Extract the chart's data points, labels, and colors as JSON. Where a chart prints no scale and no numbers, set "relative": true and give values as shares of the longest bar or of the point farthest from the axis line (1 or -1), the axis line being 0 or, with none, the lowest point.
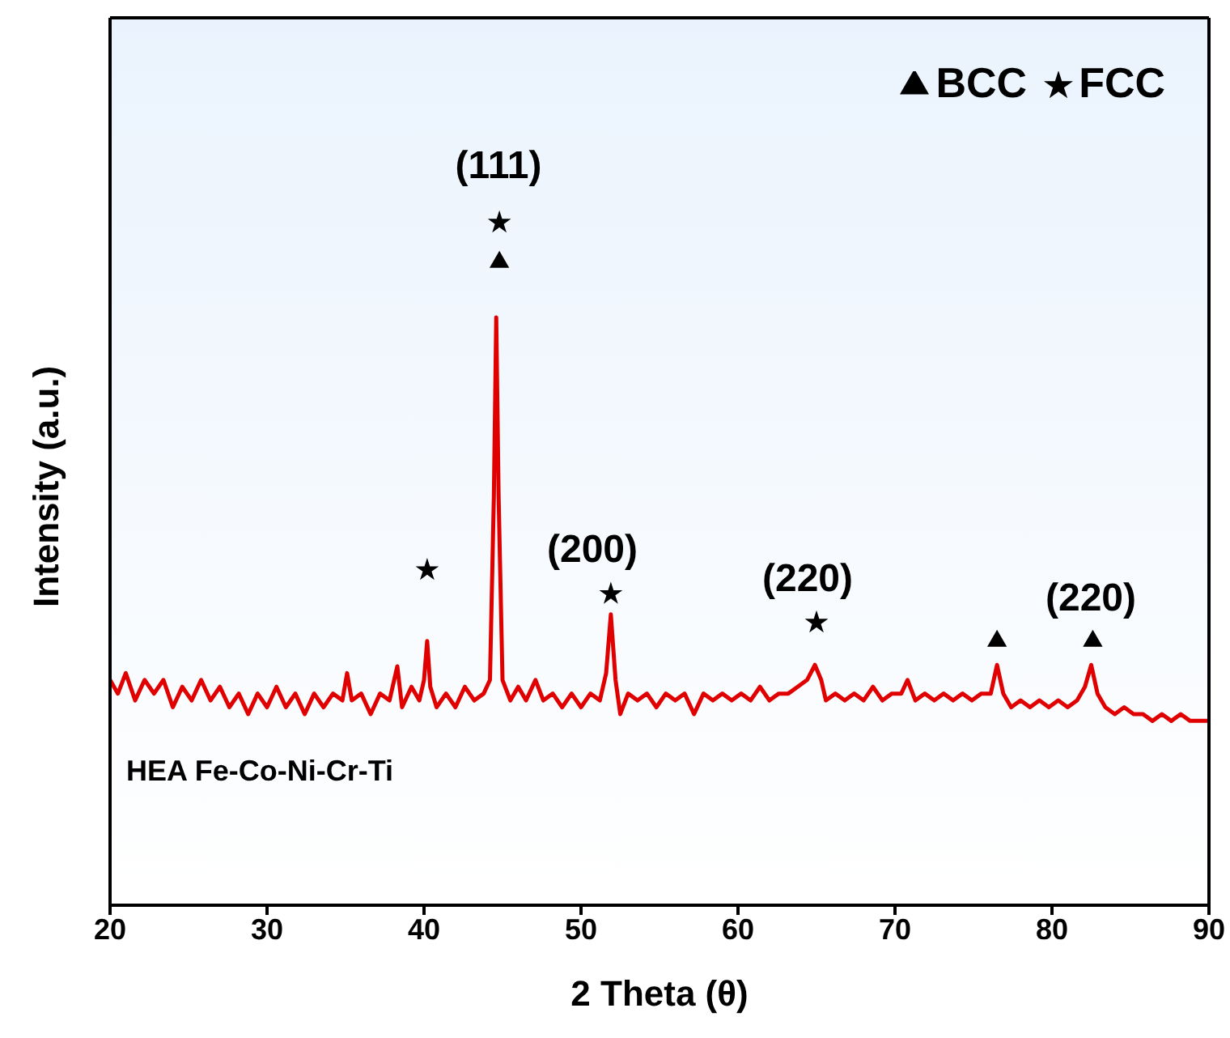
{
  "chart_data": {
    "type": "line",
    "relative": true,
    "xlabel": "2 Theta (θ)",
    "ylabel": "Intensity (a.u.)",
    "xlim": [
      20,
      90
    ],
    "xticks": [
      20,
      30,
      40,
      50,
      60,
      70,
      80,
      90
    ],
    "tick_labels": "x",
    "legend": "top right",
    "annotations": [
      "(111)",
      "(200)",
      "(220)",
      "(220)",
      "HEA Fe-Co-Ni-Cr-Ti"
    ],
    "series": [
      {
        "color": "#e00000",
        "marker": "none",
        "x": [
          20,
          20.5,
          21,
          21.6,
          22.2,
          22.8,
          23.4,
          24,
          24.6,
          25.2,
          25.8,
          26.4,
          27,
          27.6,
          28.2,
          28.8,
          29.4,
          30,
          30.6,
          31.2,
          31.8,
          32.4,
          33,
          33.6,
          34.2,
          34.8,
          35.1,
          35.4,
          36,
          36.6,
          37.2,
          37.8,
          38.3,
          38.6,
          39.2,
          39.7,
          40.0,
          40.2,
          40.4,
          40.8,
          41.4,
          42,
          42.6,
          43.2,
          43.8,
          44.2,
          44.45,
          44.6,
          44.75,
          45.0,
          45.5,
          46,
          46.5,
          47.1,
          47.6,
          48.2,
          48.8,
          49.4,
          50,
          50.6,
          51.2,
          51.6,
          51.9,
          52.2,
          52.5,
          53,
          53.6,
          54.2,
          54.8,
          55.4,
          56,
          56.6,
          57.2,
          57.8,
          58.4,
          59,
          59.6,
          60.2,
          60.8,
          61.4,
          62,
          62.6,
          63.2,
          63.8,
          64.4,
          64.9,
          65.3,
          65.6,
          66.2,
          66.8,
          67.4,
          68,
          68.6,
          69.2,
          69.8,
          70.4,
          70.8,
          71.3,
          71.9,
          72.5,
          73.1,
          73.7,
          74.3,
          74.9,
          75.5,
          76.1,
          76.5,
          76.9,
          77.4,
          78,
          78.6,
          79.2,
          79.8,
          80.4,
          81,
          81.6,
          82.1,
          82.5,
          82.9,
          83.4,
          84,
          84.6,
          85.2,
          85.8,
          86.4,
          87,
          87.6,
          88.2,
          88.8,
          89.4,
          90
        ],
        "values": [
          0.33,
          0.31,
          0.34,
          0.3,
          0.33,
          0.31,
          0.33,
          0.29,
          0.32,
          0.3,
          0.33,
          0.3,
          0.32,
          0.29,
          0.31,
          0.28,
          0.31,
          0.29,
          0.32,
          0.29,
          0.31,
          0.28,
          0.31,
          0.29,
          0.31,
          0.3,
          0.34,
          0.3,
          0.31,
          0.28,
          0.31,
          0.3,
          0.35,
          0.29,
          0.32,
          0.3,
          0.33,
          0.387,
          0.32,
          0.29,
          0.31,
          0.29,
          0.32,
          0.3,
          0.31,
          0.33,
          0.6,
          0.861,
          0.6,
          0.33,
          0.3,
          0.32,
          0.3,
          0.33,
          0.3,
          0.31,
          0.29,
          0.31,
          0.29,
          0.31,
          0.3,
          0.34,
          0.426,
          0.33,
          0.28,
          0.31,
          0.3,
          0.31,
          0.29,
          0.31,
          0.3,
          0.31,
          0.28,
          0.31,
          0.3,
          0.31,
          0.3,
          0.31,
          0.3,
          0.32,
          0.3,
          0.31,
          0.31,
          0.32,
          0.33,
          0.352,
          0.33,
          0.3,
          0.31,
          0.3,
          0.31,
          0.3,
          0.32,
          0.3,
          0.31,
          0.31,
          0.33,
          0.3,
          0.31,
          0.3,
          0.31,
          0.3,
          0.31,
          0.3,
          0.31,
          0.31,
          0.352,
          0.31,
          0.29,
          0.3,
          0.29,
          0.3,
          0.29,
          0.3,
          0.29,
          0.3,
          0.32,
          0.352,
          0.31,
          0.29,
          0.28,
          0.29,
          0.28,
          0.28,
          0.27,
          0.28,
          0.27,
          0.28,
          0.27,
          0.27,
          0.27
        ]
      },
      {
        "type": "scatter",
        "name": "BCC",
        "color": "#000000",
        "marker": "triangle",
        "x": [
          44.8,
          76.5,
          82.6
        ],
        "values": [
          0.942,
          0.387,
          0.387
        ]
      },
      {
        "type": "scatter",
        "name": "FCC",
        "color": "#000000",
        "marker": "star",
        "x": [
          40.2,
          44.8,
          51.9,
          65.0
        ],
        "values": [
          0.491,
          1.0,
          0.456,
          0.414
        ]
      }
    ]
  }
}
